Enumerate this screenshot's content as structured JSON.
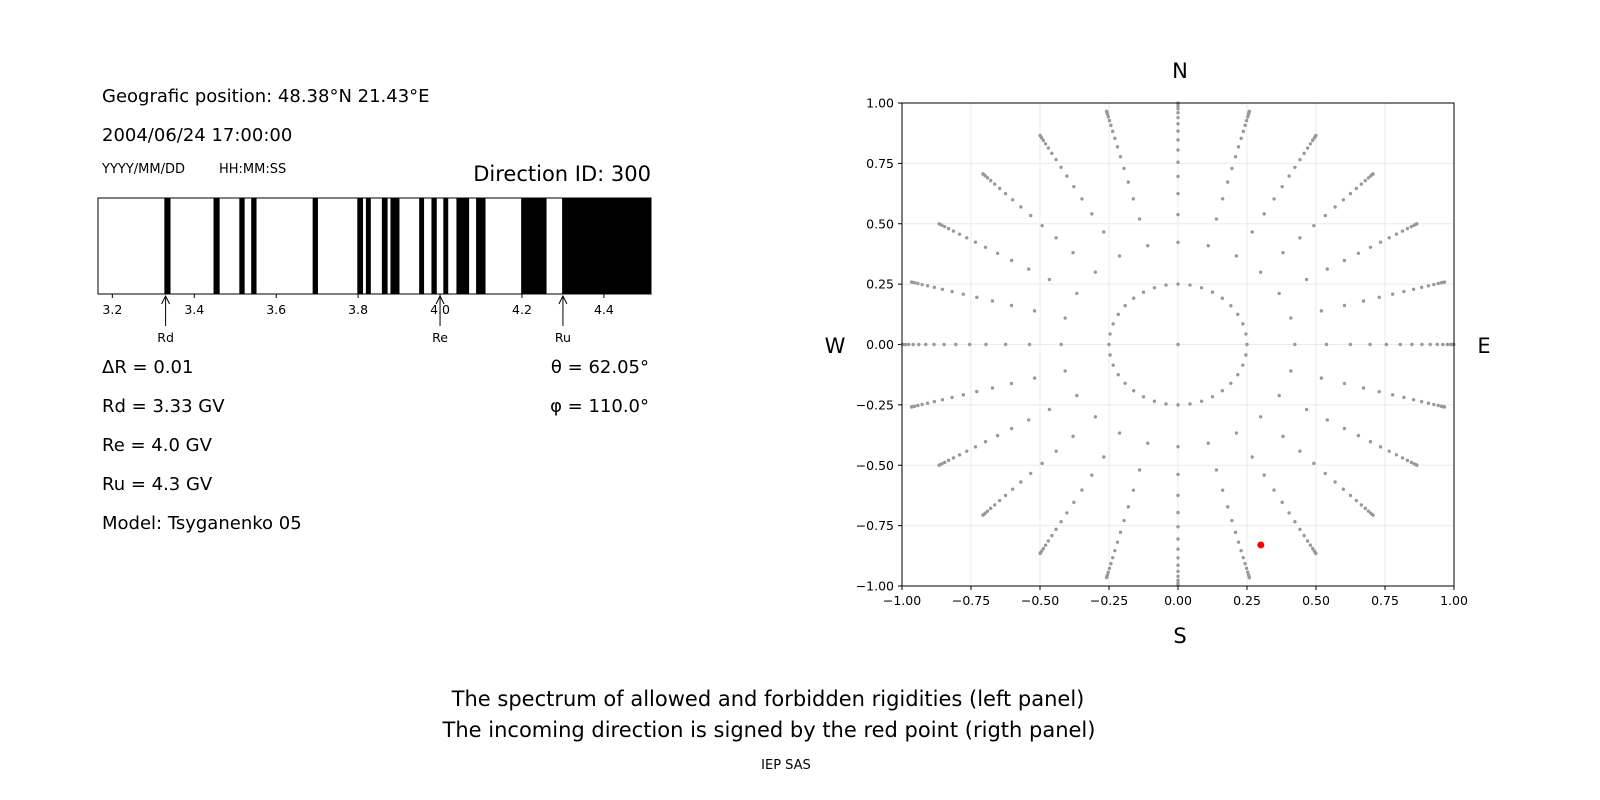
{
  "left_panel": {
    "position": "Geografic position: 48.38°N 21.43°E",
    "datetime": "2004/06/24 17:00:00",
    "date_format": "YYYY/MM/DD",
    "time_format": "HH:MM:SS",
    "direction_id": "Direction ID: 300",
    "delta_r": "ΔR = 0.01",
    "rd": "Rd = 3.33 GV",
    "re": "Re = 4.0 GV",
    "ru": "Ru = 4.3 GV",
    "model": "Model: Tsyganenko 05",
    "theta": "θ = 62.05°",
    "phi": "φ = 110.0°"
  },
  "footer": {
    "line1": "The spectrum of allowed and forbidden rigidities (left panel)",
    "line2": "The incoming direction is signed by the red point (rigth panel)",
    "credit": "IEP SAS"
  },
  "chart_data": [
    {
      "type": "bar",
      "description_kind": "rigidity spectrum",
      "xlim": [
        3.165,
        4.515
      ],
      "xticks": [
        "3.2",
        "3.4",
        "3.6",
        "3.8",
        "4.0",
        "4.2",
        "4.4"
      ],
      "xtick_values": [
        3.2,
        3.4,
        3.6,
        3.8,
        4.0,
        4.2,
        4.4
      ],
      "forbidden_bands": [
        [
          3.327,
          3.342
        ],
        [
          3.447,
          3.462
        ],
        [
          3.51,
          3.523
        ],
        [
          3.539,
          3.552
        ],
        [
          3.689,
          3.702
        ],
        [
          3.798,
          3.812
        ],
        [
          3.819,
          3.831
        ],
        [
          3.858,
          3.872
        ],
        [
          3.879,
          3.901
        ],
        [
          3.949,
          3.961
        ],
        [
          3.979,
          3.992
        ],
        [
          4.008,
          4.02
        ],
        [
          4.04,
          4.071
        ],
        [
          4.088,
          4.111
        ],
        [
          4.198,
          4.26
        ],
        [
          4.298,
          4.515
        ]
      ],
      "band_color": "#000000",
      "allowed_color": "#ffffff",
      "markers": [
        {
          "label": "Rd",
          "value": 3.33
        },
        {
          "label": "Re",
          "value": 4.0
        },
        {
          "label": "Ru",
          "value": 4.3
        }
      ]
    },
    {
      "type": "scatter",
      "xlim": [
        -1.0,
        1.0
      ],
      "ylim": [
        -1.0,
        1.0
      ],
      "grid": true,
      "xticks": [
        "−1.00",
        "−0.75",
        "−0.50",
        "−0.25",
        "0.00",
        "0.25",
        "0.50",
        "0.75",
        "1.00"
      ],
      "yticks": [
        "−1.00",
        "−0.75",
        "−0.50",
        "−0.25",
        "0.00",
        "0.25",
        "0.50",
        "0.75",
        "1.00"
      ],
      "tick_values": [
        -1,
        -0.75,
        -0.5,
        -0.25,
        0,
        0.25,
        0.5,
        0.75,
        1
      ],
      "compass": {
        "north": "N",
        "south": "S",
        "west": "W",
        "east": "E"
      },
      "grid_points": {
        "center": [
          0,
          0
        ],
        "inner_ring_radius": 0.25,
        "inner_ring_azimuth_step_deg": 10,
        "spoke_azimuth_step_deg": 15,
        "spoke_cos_zenith_levels": [
          0.906,
          0.843,
          0.781,
          0.718,
          0.656,
          0.593,
          0.531,
          0.468,
          0.406,
          0.343,
          0.281,
          0.218,
          0.156,
          0.093,
          0.031
        ],
        "color": "#999999"
      },
      "highlight_point": {
        "x": 0.3,
        "y": -0.83,
        "color": "#ff0000"
      }
    }
  ]
}
